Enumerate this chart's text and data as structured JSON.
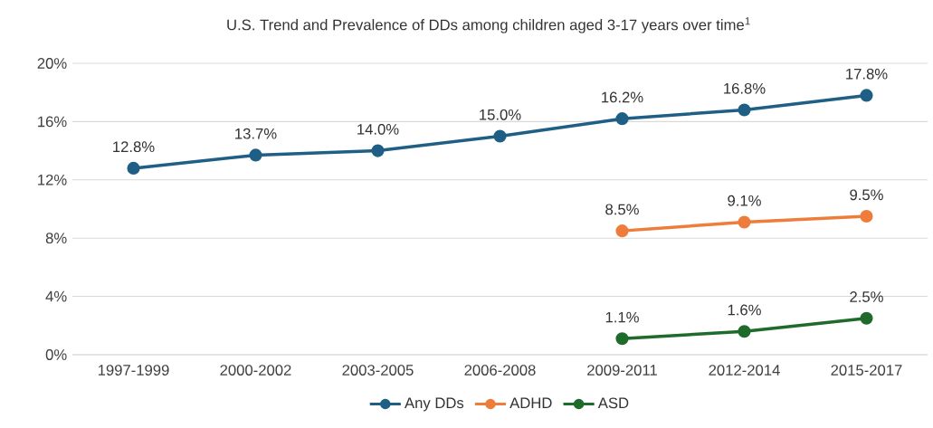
{
  "chart_data": {
    "type": "line",
    "title": "U.S. Trend and Prevalence of DDs among children aged 3-17 years over time$^{1}$",
    "categories": [
      "1997-1999",
      "2000-2002",
      "2003-2005",
      "2006-2008",
      "2009-2011",
      "2012-2014",
      "2015-2017"
    ],
    "series": [
      {
        "name": "Any DDs",
        "color": "#1f5f86",
        "values": [
          12.8,
          13.7,
          14.0,
          15.0,
          16.2,
          16.8,
          17.8
        ],
        "value_labels": [
          "12.8%",
          "13.7%",
          "14.0%",
          "15.0%",
          "16.2%",
          "16.8%",
          "17.8%"
        ]
      },
      {
        "name": "ADHD",
        "color": "#ee7d3b",
        "values": [
          null,
          null,
          null,
          null,
          8.5,
          9.1,
          9.5
        ],
        "value_labels": [
          null,
          null,
          null,
          null,
          "8.5%",
          "9.1%",
          "9.5%"
        ]
      },
      {
        "name": "ASD",
        "color": "#1e6b2b",
        "values": [
          null,
          null,
          null,
          null,
          1.1,
          1.6,
          2.5
        ],
        "value_labels": [
          null,
          null,
          null,
          null,
          "1.1%",
          "1.6%",
          "2.5%"
        ]
      }
    ],
    "ylim": [
      0,
      20
    ],
    "yticks": [
      {
        "value": 0,
        "label": "0%"
      },
      {
        "value": 4,
        "label": "4%"
      },
      {
        "value": 8,
        "label": "8%"
      },
      {
        "value": 12,
        "label": "12%"
      },
      {
        "value": 16,
        "label": "16%"
      },
      {
        "value": 20,
        "label": "20%"
      }
    ],
    "grid": "y",
    "legend": "bottom",
    "marker": "circle",
    "line_style": "solid"
  }
}
